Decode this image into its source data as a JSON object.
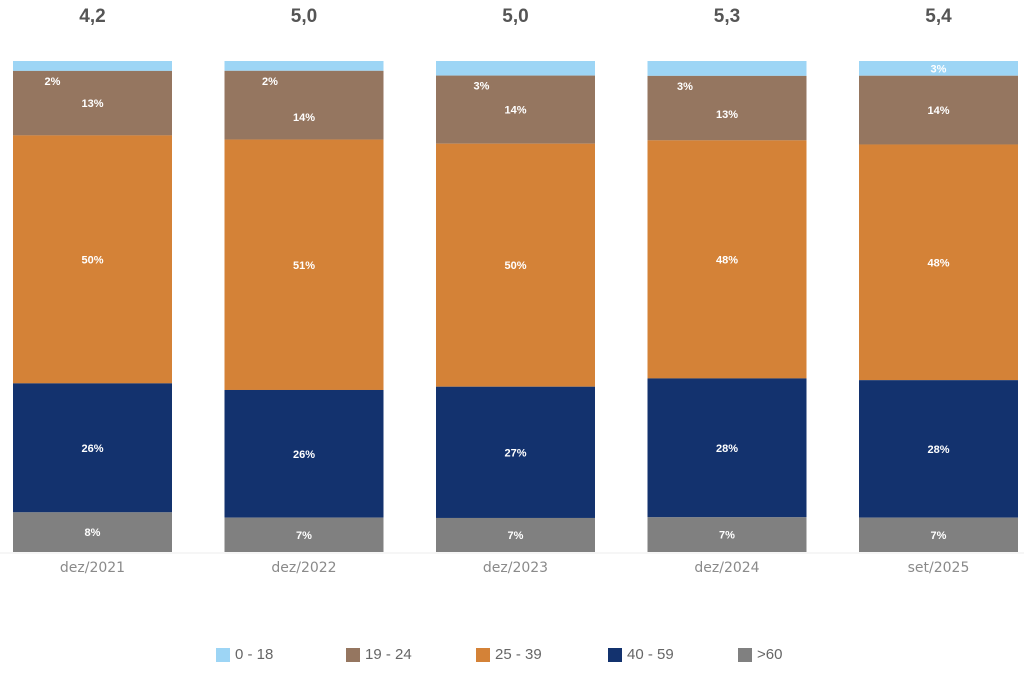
{
  "chart_data": {
    "type": "bar",
    "stacked": true,
    "normalized": true,
    "title": "",
    "xlabel": "",
    "ylabel": "",
    "categories": [
      "dez/2021",
      "dez/2022",
      "dez/2023",
      "dez/2024",
      "set/2025"
    ],
    "totals": [
      "4,2",
      "5,0",
      "5,0",
      "5,3",
      "5,4"
    ],
    "series": [
      {
        "name": "0 - 18",
        "color": "#9dd5f5",
        "values": [
          2,
          2,
          3,
          3,
          3
        ],
        "labels": [
          "2%",
          "2%",
          "3%",
          "3%",
          "3%"
        ]
      },
      {
        "name": "19 - 24",
        "color": "#957660",
        "values": [
          13,
          14,
          14,
          13,
          14
        ],
        "labels": [
          "13%",
          "14%",
          "14%",
          "13%",
          "14%"
        ]
      },
      {
        "name": "25 - 39",
        "color": "#d48237",
        "values": [
          50,
          51,
          50,
          48,
          48
        ],
        "labels": [
          "50%",
          "51%",
          "50%",
          "48%",
          "48%"
        ]
      },
      {
        "name": "40 - 59",
        "color": "#13326e",
        "values": [
          26,
          26,
          27,
          28,
          28
        ],
        "labels": [
          "26%",
          "26%",
          "27%",
          "28%",
          "28%"
        ]
      },
      {
        "name": ">60",
        "color": "#808080",
        "values": [
          8,
          7,
          7,
          7,
          7
        ],
        "labels": [
          "8%",
          "7%",
          "7%",
          "7%",
          "7%"
        ]
      }
    ],
    "ylim": [
      0,
      100
    ],
    "grid": false,
    "legend_position": "bottom-center"
  }
}
